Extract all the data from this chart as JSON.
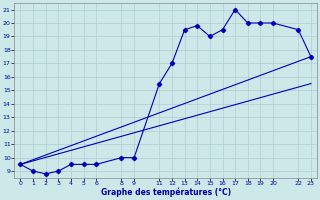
{
  "xlabel": "Graphe des températures (°C)",
  "bg_color": "#cce8e8",
  "grid_color": "#aacfcf",
  "line_color": "#0000bb",
  "ylim": [
    8.5,
    21.5
  ],
  "xlim": [
    -0.5,
    23.5
  ],
  "yticks": [
    9,
    10,
    11,
    12,
    13,
    14,
    15,
    16,
    17,
    18,
    19,
    20,
    21
  ],
  "xticks": [
    0,
    1,
    2,
    3,
    4,
    5,
    6,
    8,
    9,
    11,
    12,
    13,
    14,
    15,
    16,
    17,
    18,
    19,
    20,
    22,
    23
  ],
  "line1_x": [
    0,
    1,
    2,
    3,
    4,
    5,
    6,
    8,
    9,
    11,
    12,
    13,
    14,
    15,
    16,
    17,
    18,
    19,
    20,
    22,
    23
  ],
  "line1_y": [
    9.5,
    9.0,
    8.8,
    9.0,
    9.5,
    9.5,
    9.5,
    10.0,
    10.0,
    15.5,
    17.0,
    19.5,
    19.8,
    19.0,
    19.5,
    21.0,
    20.0,
    20.0,
    20.0,
    19.5,
    17.5
  ],
  "line2_x": [
    0,
    23
  ],
  "line2_y": [
    9.5,
    17.5
  ],
  "line3_x": [
    0,
    23
  ],
  "line3_y": [
    9.5,
    15.5
  ]
}
